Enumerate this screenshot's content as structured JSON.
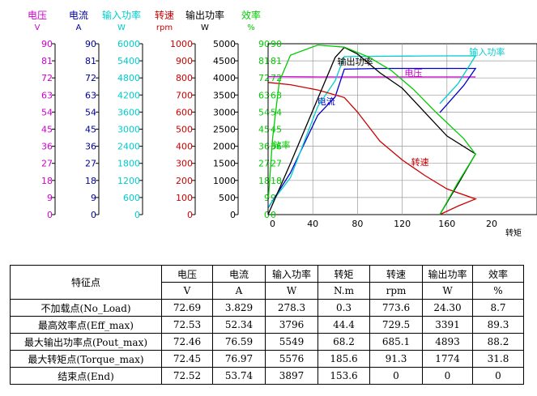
{
  "chart_data": {
    "type": "line",
    "xlim": [
      0,
      200
    ],
    "x_ticks": [
      "0",
      "40",
      "80",
      "120",
      "160",
      "20"
    ],
    "x_label": "转矩",
    "grid": true,
    "axes": [
      {
        "name": "电压",
        "unit": "V",
        "color": "#cc00cc",
        "ticks": [
          "90",
          "81",
          "72",
          "63",
          "54",
          "45",
          "36",
          "27",
          "18",
          "9",
          "0"
        ]
      },
      {
        "name": "电流",
        "unit": "A",
        "color": "#000099",
        "ticks": [
          "90",
          "81",
          "72",
          "63",
          "54",
          "45",
          "36",
          "27",
          "18",
          "9",
          "0"
        ]
      },
      {
        "name": "输入功率",
        "unit": "W",
        "color": "#00cccc",
        "ticks": [
          "6000",
          "5400",
          "4800",
          "4200",
          "3600",
          "3000",
          "2400",
          "1800",
          "1200",
          "600",
          "0"
        ]
      },
      {
        "name": "转速",
        "unit": "rpm",
        "color": "#cc0000",
        "ticks": [
          "1000",
          "900",
          "800",
          "700",
          "600",
          "500",
          "400",
          "300",
          "200",
          "100",
          "0"
        ]
      },
      {
        "name": "输出功率",
        "unit": "W",
        "color": "#000000",
        "ticks": [
          "5000",
          "4500",
          "4000",
          "3500",
          "3000",
          "2500",
          "2000",
          "1500",
          "1000",
          "500",
          "0"
        ]
      },
      {
        "name": "效率",
        "unit": "%",
        "color": "#00cc00",
        "ticks": [
          "90",
          "81",
          "72",
          "63",
          "54",
          "45",
          "36",
          "27",
          "18",
          "9",
          "0"
        ]
      }
    ],
    "plot_ticks": [
      "90",
      "81",
      "72",
      "63",
      "54",
      "45",
      "36",
      "27",
      "18",
      "9",
      "0"
    ],
    "series": [
      {
        "name": "电压",
        "color": "#cc00cc",
        "label_at": [
          122,
          73
        ],
        "points": [
          [
            0.3,
            72.7
          ],
          [
            44,
            72.5
          ],
          [
            68,
            72.5
          ],
          [
            120,
            72.5
          ],
          [
            185.6,
            72.5
          ],
          [
            153.6,
            72.5
          ]
        ]
      },
      {
        "name": "电流",
        "color": "#0000cc",
        "label_at": [
          44,
          58
        ],
        "points": [
          [
            0.3,
            3.8
          ],
          [
            20,
            22
          ],
          [
            44.4,
            52.3
          ],
          [
            60,
            62
          ],
          [
            68.2,
            76.6
          ],
          [
            100,
            77
          ],
          [
            150,
            77
          ],
          [
            185.6,
            77
          ],
          [
            175,
            68
          ],
          [
            153.6,
            53.7
          ]
        ]
      },
      {
        "name": "输入功率",
        "color": "#00cccc",
        "label_at": [
          180,
          84
        ],
        "points": [
          [
            0.3,
            278
          ],
          [
            20,
            1300
          ],
          [
            44.4,
            3796
          ],
          [
            60,
            4700
          ],
          [
            68.2,
            5549
          ],
          [
            100,
            5560
          ],
          [
            140,
            5570
          ],
          [
            185.6,
            5576
          ],
          [
            170,
            4600
          ],
          [
            153.6,
            3897
          ]
        ]
      },
      {
        "name": "转速",
        "color": "#cc0000",
        "label_at": [
          128,
          26
        ],
        "points": [
          [
            0.3,
            773.6
          ],
          [
            20,
            760
          ],
          [
            44.4,
            729.5
          ],
          [
            68.2,
            685.1
          ],
          [
            80,
            600
          ],
          [
            100,
            430
          ],
          [
            120,
            320
          ],
          [
            140,
            230
          ],
          [
            160,
            150
          ],
          [
            185.6,
            91.3
          ],
          [
            170,
            50
          ],
          [
            153.6,
            0
          ]
        ]
      },
      {
        "name": "输出功率",
        "color": "#000000",
        "label_at": [
          62,
          79
        ],
        "points": [
          [
            0.3,
            24
          ],
          [
            20,
            1500
          ],
          [
            44.4,
            3391
          ],
          [
            60,
            4600
          ],
          [
            68.2,
            4893
          ],
          [
            80,
            4700
          ],
          [
            100,
            4150
          ],
          [
            120,
            3700
          ],
          [
            140,
            3000
          ],
          [
            160,
            2300
          ],
          [
            185.6,
            1774
          ],
          [
            170,
            900
          ],
          [
            153.6,
            0
          ]
        ]
      },
      {
        "name": "效率",
        "color": "#00cc00",
        "label_at": [
          4,
          35
        ],
        "points": [
          [
            0.3,
            8.7
          ],
          [
            4,
            40
          ],
          [
            10,
            70
          ],
          [
            20,
            84
          ],
          [
            44.4,
            89.3
          ],
          [
            68.2,
            88.2
          ],
          [
            90,
            83
          ],
          [
            110,
            76
          ],
          [
            130,
            66
          ],
          [
            150,
            54
          ],
          [
            175,
            40
          ],
          [
            185.6,
            31.8
          ],
          [
            170,
            17
          ],
          [
            153.6,
            0
          ]
        ]
      }
    ]
  },
  "table": {
    "header_label": "特征点",
    "columns": [
      {
        "name": "电压",
        "unit": "V"
      },
      {
        "name": "电流",
        "unit": "A"
      },
      {
        "name": "输入功率",
        "unit": "W"
      },
      {
        "name": "转矩",
        "unit": "N.m"
      },
      {
        "name": "转速",
        "unit": "rpm"
      },
      {
        "name": "输出功率",
        "unit": "W"
      },
      {
        "name": "效率",
        "unit": "%"
      }
    ],
    "rows": [
      {
        "label": "不加载点(No_Load)",
        "values": [
          "72.69",
          "3.829",
          "278.3",
          "0.3",
          "773.6",
          "24.30",
          "8.7"
        ]
      },
      {
        "label": "最高效率点(Eff_max)",
        "values": [
          "72.53",
          "52.34",
          "3796",
          "44.4",
          "729.5",
          "3391",
          "89.3"
        ]
      },
      {
        "label": "最大输出功率点(Pout_max)",
        "values": [
          "72.46",
          "76.59",
          "5549",
          "68.2",
          "685.1",
          "4893",
          "88.2"
        ]
      },
      {
        "label": "最大转矩点(Torque_max)",
        "values": [
          "72.45",
          "76.97",
          "5576",
          "185.6",
          "91.3",
          "1774",
          "31.8"
        ]
      },
      {
        "label": "结束点(End)",
        "values": [
          "72.52",
          "53.74",
          "3897",
          "153.6",
          "0",
          "0",
          "0"
        ]
      }
    ]
  }
}
